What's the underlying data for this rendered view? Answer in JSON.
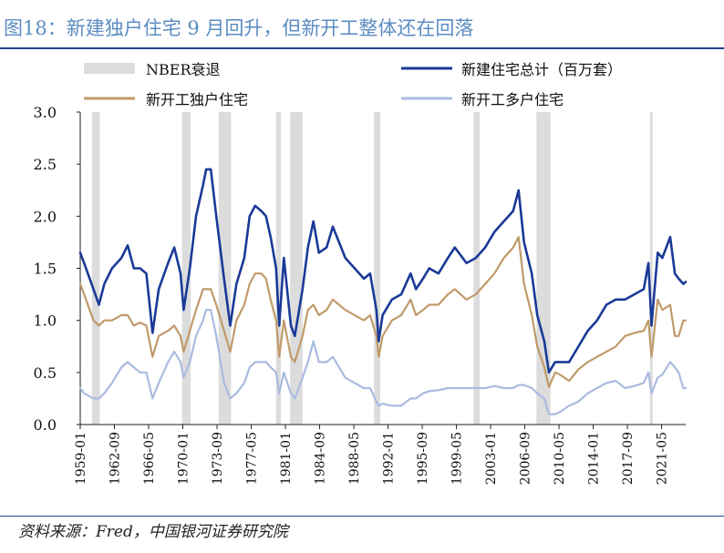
{
  "title": "图18：新建独户住宅 9 月回升，但新开工整体还在回落",
  "source": "资料来源：Fred，中国银河证券研究院",
  "colors": {
    "recession": "#dcdcdc",
    "total": "#1a3a97",
    "single": "#c09a6a",
    "multi": "#aabbe0",
    "title": "#5b8cc2",
    "rule": "#1f3f8f"
  },
  "chart_data": {
    "type": "line",
    "ylim": [
      0,
      3.0
    ],
    "yticks": [
      "0.0",
      "0.5",
      "1.0",
      "1.5",
      "2.0",
      "2.5",
      "3.0"
    ],
    "xlim": [
      "1959-01",
      "2023-12"
    ],
    "xticks": [
      "1959-01",
      "1962-09",
      "1966-05",
      "1970-01",
      "1973-09",
      "1977-05",
      "1981-01",
      "1984-09",
      "1988-05",
      "1992-01",
      "1995-09",
      "1999-05",
      "2003-01",
      "2006-09",
      "2010-05",
      "2014-01",
      "2017-09",
      "2021-05"
    ],
    "legend": {
      "recession": "NBER衰退",
      "total": "新建住宅总计（百万套）",
      "single": "新开工独户住宅",
      "multi": "新开工多户住宅"
    },
    "recessions": [
      [
        "1960-04",
        "1961-02"
      ],
      [
        "1969-12",
        "1970-11"
      ],
      [
        "1973-11",
        "1975-03"
      ],
      [
        "1980-01",
        "1980-07"
      ],
      [
        "1981-07",
        "1982-11"
      ],
      [
        "1990-07",
        "1991-03"
      ],
      [
        "2001-03",
        "2001-11"
      ],
      [
        "2007-12",
        "2009-06"
      ],
      [
        "2020-02",
        "2020-04"
      ]
    ],
    "series": [
      {
        "key": "total",
        "name": "新建住宅总计（百万套）",
        "points": [
          [
            "1959-01",
            1.65
          ],
          [
            "1959-06",
            1.55
          ],
          [
            "1960-06",
            1.3
          ],
          [
            "1961-01",
            1.15
          ],
          [
            "1961-08",
            1.35
          ],
          [
            "1962-06",
            1.5
          ],
          [
            "1963-06",
            1.6
          ],
          [
            "1964-02",
            1.72
          ],
          [
            "1964-10",
            1.5
          ],
          [
            "1965-06",
            1.5
          ],
          [
            "1966-02",
            1.45
          ],
          [
            "1966-10",
            0.88
          ],
          [
            "1967-06",
            1.3
          ],
          [
            "1968-06",
            1.55
          ],
          [
            "1969-02",
            1.7
          ],
          [
            "1969-10",
            1.45
          ],
          [
            "1970-02",
            1.1
          ],
          [
            "1970-10",
            1.5
          ],
          [
            "1971-06",
            2.0
          ],
          [
            "1972-03",
            2.3
          ],
          [
            "1972-07",
            2.45
          ],
          [
            "1973-01",
            2.45
          ],
          [
            "1973-08",
            2.0
          ],
          [
            "1974-06",
            1.4
          ],
          [
            "1975-02",
            0.95
          ],
          [
            "1975-10",
            1.35
          ],
          [
            "1976-08",
            1.6
          ],
          [
            "1977-03",
            2.0
          ],
          [
            "1977-10",
            2.1
          ],
          [
            "1978-06",
            2.05
          ],
          [
            "1978-12",
            2.0
          ],
          [
            "1979-06",
            1.8
          ],
          [
            "1980-01",
            1.5
          ],
          [
            "1980-05",
            0.95
          ],
          [
            "1980-11",
            1.6
          ],
          [
            "1981-08",
            0.95
          ],
          [
            "1982-01",
            0.85
          ],
          [
            "1982-11",
            1.3
          ],
          [
            "1983-06",
            1.7
          ],
          [
            "1984-01",
            1.95
          ],
          [
            "1984-08",
            1.65
          ],
          [
            "1985-06",
            1.7
          ],
          [
            "1986-02",
            1.9
          ],
          [
            "1986-10",
            1.75
          ],
          [
            "1987-06",
            1.6
          ],
          [
            "1988-06",
            1.5
          ],
          [
            "1989-06",
            1.4
          ],
          [
            "1990-02",
            1.45
          ],
          [
            "1990-10",
            1.1
          ],
          [
            "1991-01",
            0.8
          ],
          [
            "1991-06",
            1.05
          ],
          [
            "1992-06",
            1.2
          ],
          [
            "1993-06",
            1.25
          ],
          [
            "1994-06",
            1.45
          ],
          [
            "1995-01",
            1.3
          ],
          [
            "1995-10",
            1.4
          ],
          [
            "1996-06",
            1.5
          ],
          [
            "1997-06",
            1.45
          ],
          [
            "1998-06",
            1.6
          ],
          [
            "1999-03",
            1.7
          ],
          [
            "2000-06",
            1.55
          ],
          [
            "2001-06",
            1.6
          ],
          [
            "2002-06",
            1.7
          ],
          [
            "2003-06",
            1.85
          ],
          [
            "2004-06",
            1.95
          ],
          [
            "2005-06",
            2.05
          ],
          [
            "2006-01",
            2.25
          ],
          [
            "2006-08",
            1.75
          ],
          [
            "2007-06",
            1.45
          ],
          [
            "2008-01",
            1.05
          ],
          [
            "2008-10",
            0.8
          ],
          [
            "2009-04",
            0.5
          ],
          [
            "2009-12",
            0.6
          ],
          [
            "2010-06",
            0.6
          ],
          [
            "2011-06",
            0.6
          ],
          [
            "2012-06",
            0.75
          ],
          [
            "2013-06",
            0.9
          ],
          [
            "2014-06",
            1.0
          ],
          [
            "2015-06",
            1.15
          ],
          [
            "2016-06",
            1.2
          ],
          [
            "2017-06",
            1.2
          ],
          [
            "2018-06",
            1.25
          ],
          [
            "2019-06",
            1.3
          ],
          [
            "2019-12",
            1.55
          ],
          [
            "2020-04",
            0.95
          ],
          [
            "2020-12",
            1.65
          ],
          [
            "2021-06",
            1.6
          ],
          [
            "2022-04",
            1.8
          ],
          [
            "2022-10",
            1.45
          ],
          [
            "2023-03",
            1.4
          ],
          [
            "2023-09",
            1.35
          ],
          [
            "2023-12",
            1.37
          ]
        ]
      },
      {
        "key": "single",
        "name": "新开工独户住宅",
        "points": [
          [
            "1959-01",
            1.35
          ],
          [
            "1959-06",
            1.25
          ],
          [
            "1960-06",
            1.0
          ],
          [
            "1961-01",
            0.95
          ],
          [
            "1961-08",
            1.0
          ],
          [
            "1962-06",
            1.0
          ],
          [
            "1963-06",
            1.05
          ],
          [
            "1964-02",
            1.05
          ],
          [
            "1964-10",
            0.95
          ],
          [
            "1965-06",
            0.98
          ],
          [
            "1966-02",
            0.95
          ],
          [
            "1966-10",
            0.65
          ],
          [
            "1967-06",
            0.85
          ],
          [
            "1968-06",
            0.9
          ],
          [
            "1969-02",
            0.95
          ],
          [
            "1969-10",
            0.85
          ],
          [
            "1970-02",
            0.7
          ],
          [
            "1970-10",
            0.9
          ],
          [
            "1971-06",
            1.1
          ],
          [
            "1972-03",
            1.3
          ],
          [
            "1972-07",
            1.3
          ],
          [
            "1973-01",
            1.3
          ],
          [
            "1973-08",
            1.15
          ],
          [
            "1974-06",
            0.9
          ],
          [
            "1975-02",
            0.7
          ],
          [
            "1975-10",
            1.0
          ],
          [
            "1976-08",
            1.15
          ],
          [
            "1977-03",
            1.35
          ],
          [
            "1977-10",
            1.45
          ],
          [
            "1978-06",
            1.45
          ],
          [
            "1978-12",
            1.4
          ],
          [
            "1979-06",
            1.2
          ],
          [
            "1980-01",
            1.0
          ],
          [
            "1980-05",
            0.65
          ],
          [
            "1980-11",
            1.0
          ],
          [
            "1981-08",
            0.65
          ],
          [
            "1982-01",
            0.6
          ],
          [
            "1982-11",
            0.85
          ],
          [
            "1983-06",
            1.1
          ],
          [
            "1984-01",
            1.15
          ],
          [
            "1984-08",
            1.05
          ],
          [
            "1985-06",
            1.1
          ],
          [
            "1986-02",
            1.2
          ],
          [
            "1986-10",
            1.15
          ],
          [
            "1987-06",
            1.1
          ],
          [
            "1988-06",
            1.05
          ],
          [
            "1989-06",
            1.0
          ],
          [
            "1990-02",
            1.05
          ],
          [
            "1990-10",
            0.85
          ],
          [
            "1991-01",
            0.65
          ],
          [
            "1991-06",
            0.85
          ],
          [
            "1992-06",
            1.0
          ],
          [
            "1993-06",
            1.05
          ],
          [
            "1994-06",
            1.2
          ],
          [
            "1995-01",
            1.05
          ],
          [
            "1995-10",
            1.1
          ],
          [
            "1996-06",
            1.15
          ],
          [
            "1997-06",
            1.15
          ],
          [
            "1998-06",
            1.25
          ],
          [
            "1999-03",
            1.3
          ],
          [
            "2000-06",
            1.2
          ],
          [
            "2001-06",
            1.25
          ],
          [
            "2002-06",
            1.35
          ],
          [
            "2003-06",
            1.45
          ],
          [
            "2004-06",
            1.6
          ],
          [
            "2005-06",
            1.7
          ],
          [
            "2006-01",
            1.8
          ],
          [
            "2006-08",
            1.35
          ],
          [
            "2007-06",
            1.05
          ],
          [
            "2008-01",
            0.75
          ],
          [
            "2008-10",
            0.55
          ],
          [
            "2009-04",
            0.36
          ],
          [
            "2009-12",
            0.5
          ],
          [
            "2010-06",
            0.48
          ],
          [
            "2011-06",
            0.42
          ],
          [
            "2012-06",
            0.53
          ],
          [
            "2013-06",
            0.6
          ],
          [
            "2014-06",
            0.65
          ],
          [
            "2015-06",
            0.7
          ],
          [
            "2016-06",
            0.75
          ],
          [
            "2017-06",
            0.85
          ],
          [
            "2018-06",
            0.88
          ],
          [
            "2019-06",
            0.9
          ],
          [
            "2019-12",
            1.0
          ],
          [
            "2020-04",
            0.65
          ],
          [
            "2020-12",
            1.2
          ],
          [
            "2021-06",
            1.1
          ],
          [
            "2022-04",
            1.15
          ],
          [
            "2022-10",
            0.85
          ],
          [
            "2023-03",
            0.85
          ],
          [
            "2023-09",
            1.0
          ],
          [
            "2023-12",
            1.0
          ]
        ]
      },
      {
        "key": "multi",
        "name": "新开工多户住宅",
        "points": [
          [
            "1959-01",
            0.35
          ],
          [
            "1959-06",
            0.3
          ],
          [
            "1960-06",
            0.25
          ],
          [
            "1961-01",
            0.25
          ],
          [
            "1961-08",
            0.3
          ],
          [
            "1962-06",
            0.4
          ],
          [
            "1963-06",
            0.55
          ],
          [
            "1964-02",
            0.6
          ],
          [
            "1964-10",
            0.55
          ],
          [
            "1965-06",
            0.5
          ],
          [
            "1966-02",
            0.5
          ],
          [
            "1966-10",
            0.25
          ],
          [
            "1967-06",
            0.4
          ],
          [
            "1968-06",
            0.6
          ],
          [
            "1969-02",
            0.7
          ],
          [
            "1969-10",
            0.6
          ],
          [
            "1970-02",
            0.45
          ],
          [
            "1970-10",
            0.6
          ],
          [
            "1971-06",
            0.85
          ],
          [
            "1972-03",
            1.0
          ],
          [
            "1972-07",
            1.1
          ],
          [
            "1973-01",
            1.1
          ],
          [
            "1973-08",
            0.85
          ],
          [
            "1974-06",
            0.4
          ],
          [
            "1975-02",
            0.25
          ],
          [
            "1975-10",
            0.3
          ],
          [
            "1976-08",
            0.4
          ],
          [
            "1977-03",
            0.55
          ],
          [
            "1977-10",
            0.6
          ],
          [
            "1978-06",
            0.6
          ],
          [
            "1978-12",
            0.6
          ],
          [
            "1979-06",
            0.55
          ],
          [
            "1980-01",
            0.5
          ],
          [
            "1980-05",
            0.3
          ],
          [
            "1980-11",
            0.5
          ],
          [
            "1981-08",
            0.3
          ],
          [
            "1982-01",
            0.25
          ],
          [
            "1982-11",
            0.45
          ],
          [
            "1983-06",
            0.6
          ],
          [
            "1984-01",
            0.8
          ],
          [
            "1984-08",
            0.6
          ],
          [
            "1985-06",
            0.6
          ],
          [
            "1986-02",
            0.65
          ],
          [
            "1986-10",
            0.55
          ],
          [
            "1987-06",
            0.45
          ],
          [
            "1988-06",
            0.4
          ],
          [
            "1989-06",
            0.35
          ],
          [
            "1990-02",
            0.35
          ],
          [
            "1990-10",
            0.22
          ],
          [
            "1991-01",
            0.18
          ],
          [
            "1991-06",
            0.2
          ],
          [
            "1992-06",
            0.18
          ],
          [
            "1993-06",
            0.18
          ],
          [
            "1994-06",
            0.25
          ],
          [
            "1995-01",
            0.25
          ],
          [
            "1995-10",
            0.3
          ],
          [
            "1996-06",
            0.32
          ],
          [
            "1997-06",
            0.33
          ],
          [
            "1998-06",
            0.35
          ],
          [
            "1999-03",
            0.35
          ],
          [
            "2000-06",
            0.35
          ],
          [
            "2001-06",
            0.35
          ],
          [
            "2002-06",
            0.35
          ],
          [
            "2003-06",
            0.37
          ],
          [
            "2004-06",
            0.35
          ],
          [
            "2005-06",
            0.35
          ],
          [
            "2006-01",
            0.38
          ],
          [
            "2006-08",
            0.38
          ],
          [
            "2007-06",
            0.35
          ],
          [
            "2008-01",
            0.3
          ],
          [
            "2008-10",
            0.25
          ],
          [
            "2009-04",
            0.1
          ],
          [
            "2009-12",
            0.1
          ],
          [
            "2010-06",
            0.12
          ],
          [
            "2011-06",
            0.18
          ],
          [
            "2012-06",
            0.22
          ],
          [
            "2013-06",
            0.3
          ],
          [
            "2014-06",
            0.35
          ],
          [
            "2015-06",
            0.4
          ],
          [
            "2016-06",
            0.42
          ],
          [
            "2017-06",
            0.35
          ],
          [
            "2018-06",
            0.37
          ],
          [
            "2019-06",
            0.4
          ],
          [
            "2019-12",
            0.5
          ],
          [
            "2020-04",
            0.3
          ],
          [
            "2020-12",
            0.45
          ],
          [
            "2021-06",
            0.48
          ],
          [
            "2022-04",
            0.6
          ],
          [
            "2022-10",
            0.55
          ],
          [
            "2023-03",
            0.5
          ],
          [
            "2023-09",
            0.35
          ],
          [
            "2023-12",
            0.35
          ]
        ]
      }
    ]
  }
}
